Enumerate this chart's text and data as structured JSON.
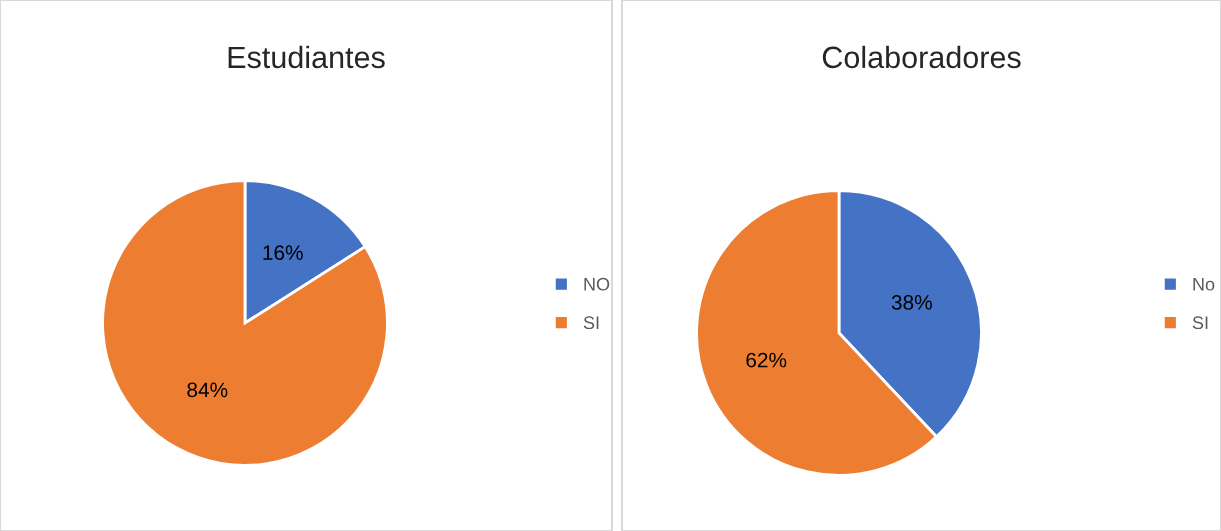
{
  "chart_data": [
    {
      "type": "pie",
      "title": "Estudiantes",
      "categories": [
        "NO",
        "SI"
      ],
      "values": [
        16,
        84
      ],
      "colors": [
        "#4472c4",
        "#ed7d31"
      ],
      "value_labels": [
        "16%",
        "84%"
      ],
      "legend": "right"
    },
    {
      "type": "pie",
      "title": "Colaboradores",
      "categories": [
        "No",
        "SI"
      ],
      "values": [
        38,
        62
      ],
      "colors": [
        "#4472c4",
        "#ed7d31"
      ],
      "value_labels": [
        "38%",
        "62%"
      ],
      "legend": "right"
    }
  ]
}
